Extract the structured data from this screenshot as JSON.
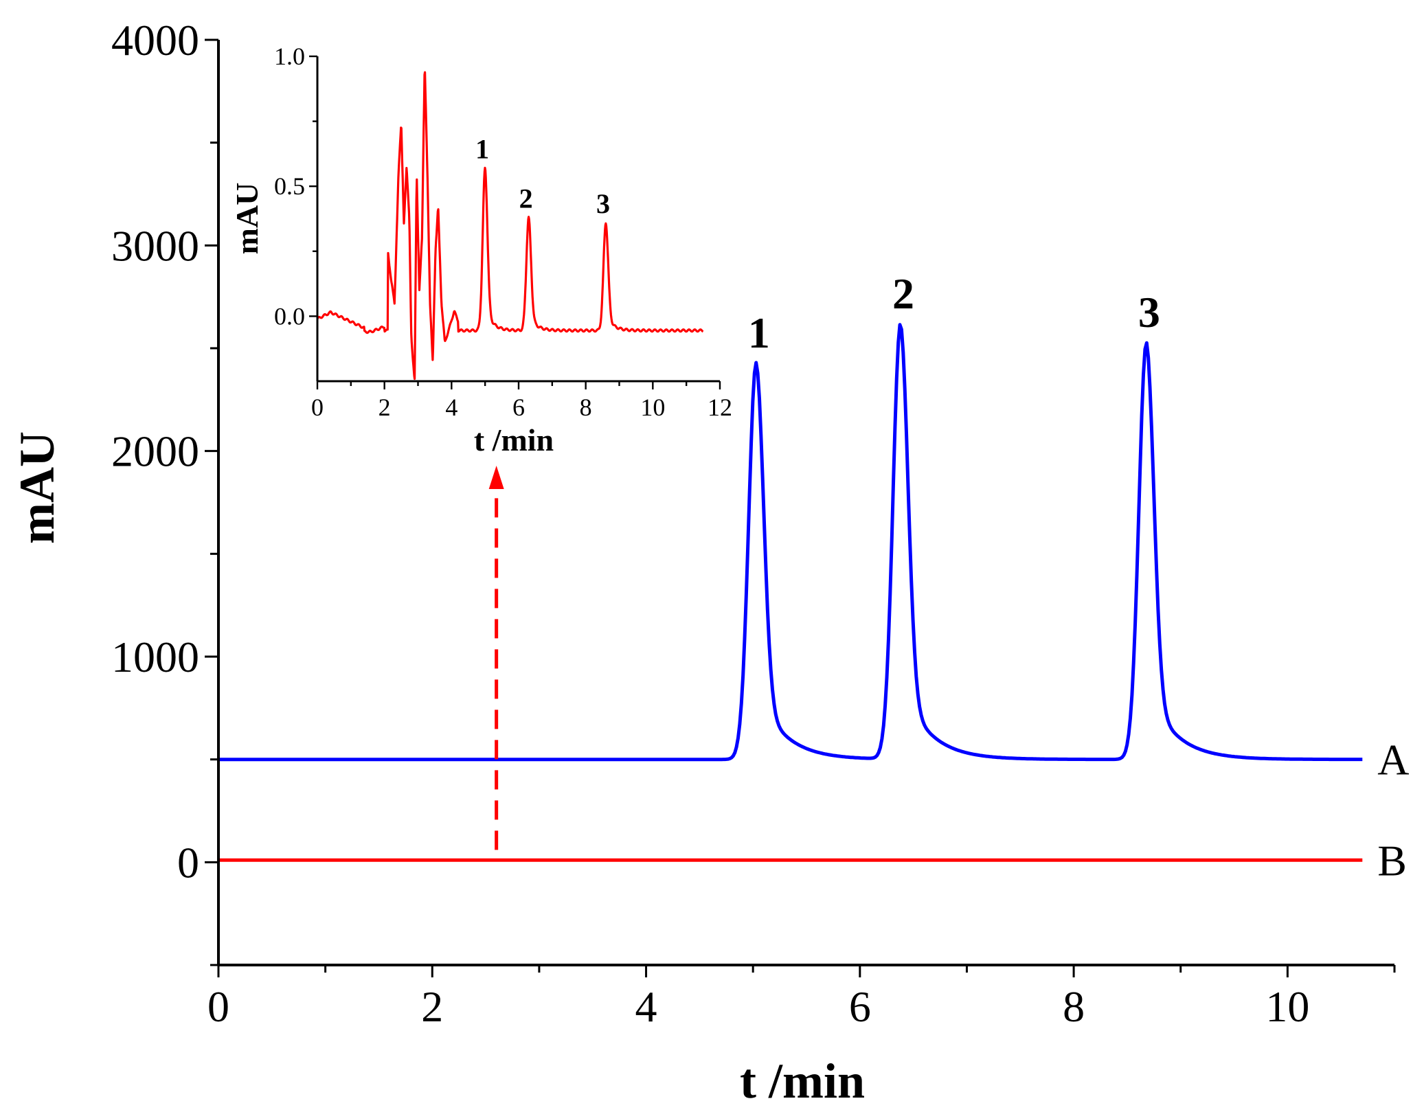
{
  "chart_data": {
    "type": "line",
    "main": {
      "xlabel": "t /min",
      "ylabel": "mAU",
      "xlim": [
        0,
        11
      ],
      "ylim": [
        -500,
        4000
      ],
      "x_ticks": [
        0,
        2,
        4,
        6,
        8,
        10
      ],
      "y_ticks": [
        0,
        1000,
        2000,
        3000,
        4000
      ],
      "grid": false,
      "series": [
        {
          "name": "A",
          "color": "#0000ff",
          "baseline": 500,
          "x_end": 10.7,
          "peaks": [
            {
              "label": "1",
              "x": 5.03,
              "y": 2430
            },
            {
              "label": "2",
              "x": 6.38,
              "y": 2620
            },
            {
              "label": "3",
              "x": 8.68,
              "y": 2530
            }
          ]
        },
        {
          "name": "B",
          "color": "#ff0000",
          "baseline": 10,
          "x_end": 10.7,
          "peaks": []
        }
      ]
    },
    "inset": {
      "xlabel": "t /min",
      "ylabel": "mAU",
      "xlim": [
        0,
        12
      ],
      "ylim": [
        -0.25,
        1.0
      ],
      "x_ticks": [
        0,
        2,
        4,
        6,
        8,
        10,
        12
      ],
      "y_ticks": [
        0.0,
        0.5,
        1.0
      ],
      "y_tick_labels": [
        "0.0",
        "0.5",
        "1.0"
      ],
      "color": "#ff0000",
      "peaks": [
        {
          "label": "1",
          "x": 5.0,
          "y": 0.57
        },
        {
          "label": "2",
          "x": 6.3,
          "y": 0.38
        },
        {
          "label": "3",
          "x": 8.6,
          "y": 0.36
        }
      ]
    },
    "annotation": {
      "type": "dashed-arrow",
      "x": 2.6,
      "color": "#ff0000",
      "meaning": "magnified view of trace B"
    }
  }
}
